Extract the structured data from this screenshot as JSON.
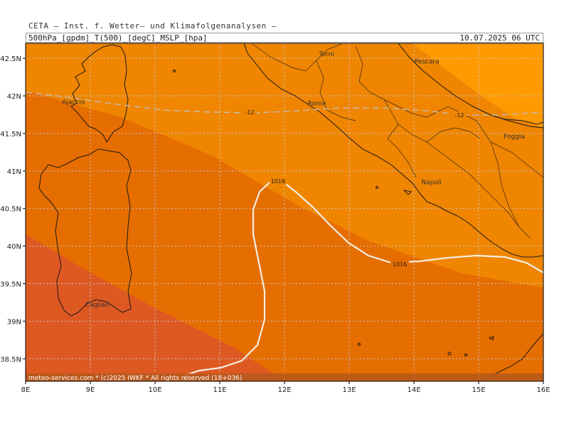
{
  "header": {
    "org": "CETA  –  Inst. f. Wetter–  und  Klimafolgenanalysen  –",
    "params": "500hPa_[gpdm]_T(500)_[degC]_MSLP_[hpa]",
    "datetime": "10.07.2025  06  UTC"
  },
  "map": {
    "lon_ticks": [
      "8E",
      "9E",
      "10E",
      "11E",
      "12E",
      "13E",
      "14E",
      "15E",
      "16E"
    ],
    "lat_ticks": [
      "42.5N",
      "42N",
      "41.5N",
      "41N",
      "40.5N",
      "40N",
      "39.5N",
      "39N",
      "38.5N"
    ],
    "cities": [
      {
        "name": "Terni",
        "lon": 12.65,
        "lat": 42.56
      },
      {
        "name": "Pescara",
        "lon": 14.2,
        "lat": 42.46
      },
      {
        "name": "Ajaccio",
        "lon": 8.74,
        "lat": 41.92
      },
      {
        "name": "Rome",
        "lon": 12.5,
        "lat": 41.9
      },
      {
        "name": "Foggia",
        "lon": 15.55,
        "lat": 41.46
      },
      {
        "name": "Napoli",
        "lon": 14.27,
        "lat": 40.85
      },
      {
        "name": "Cagliari",
        "lon": 9.11,
        "lat": 39.22
      }
    ],
    "isobar_label": "1016",
    "isotherm_label": "-12",
    "colors": {
      "band_1": "#ff9a00",
      "band_2": "#f08600",
      "band_3": "#e66d00",
      "band_4": "#de5822",
      "isobar": "#f4eee0",
      "isotherm": "#c9b8a8",
      "grid": "#c8c8c8",
      "coast": "#1a1a1a"
    },
    "footer": "meteo-services.com  *  (c)2025  IWKF  *  All  rights  reserved  (18+036)"
  }
}
